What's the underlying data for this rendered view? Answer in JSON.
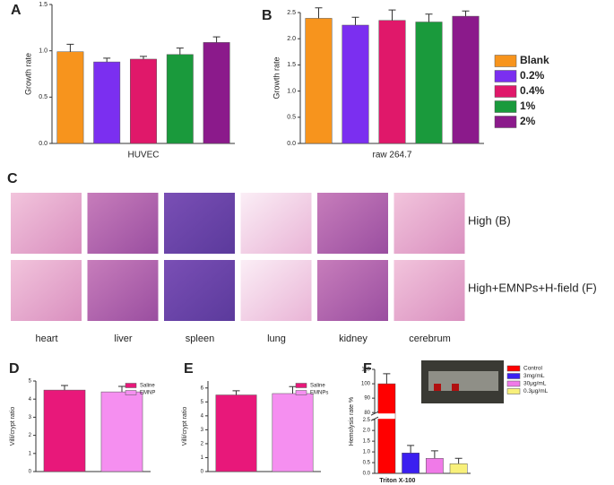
{
  "chart_data": [
    {
      "type": "bar",
      "panel": "A",
      "y_label": "Growth rate",
      "categories": [
        "HUVEC"
      ],
      "legend": "right",
      "ylim": [
        0,
        1.5
      ],
      "yticks": [
        {
          "value": 0,
          "label": "0.0"
        },
        0.5,
        {
          "value": 1,
          "label": "1.0"
        },
        1.5
      ],
      "series": [
        {
          "name": "Blank",
          "color": "#f7941d",
          "values": [
            0.99
          ],
          "errors": [
            0.08
          ]
        },
        {
          "name": "0.2%",
          "color": "#7b2ff0",
          "values": [
            0.88
          ],
          "errors": [
            0.04
          ]
        },
        {
          "name": "0.4%",
          "color": "#e0186a",
          "values": [
            0.91
          ],
          "errors": [
            0.03
          ]
        },
        {
          "name": "1%",
          "color": "#1a9a3c",
          "values": [
            0.96
          ],
          "errors": [
            0.07
          ]
        },
        {
          "name": "2%",
          "color": "#8b1a8b",
          "values": [
            1.09
          ],
          "errors": [
            0.06
          ]
        }
      ]
    },
    {
      "type": "bar",
      "panel": "B",
      "y_label": "Growth rate",
      "categories": [
        "raw 264.7"
      ],
      "ylim": [
        0,
        2.5
      ],
      "yticks": [
        {
          "value": 0,
          "label": "0.0"
        },
        0.5,
        {
          "value": 1,
          "label": "1.0"
        },
        1.5,
        {
          "value": 2,
          "label": "2.0"
        },
        2.5
      ],
      "series": [
        {
          "color": "#f7941d",
          "values": [
            2.39
          ],
          "errors": [
            0.2
          ]
        },
        {
          "color": "#7b2ff0",
          "values": [
            2.26
          ],
          "errors": [
            0.15
          ]
        },
        {
          "color": "#e0186a",
          "values": [
            2.35
          ],
          "errors": [
            0.2
          ]
        },
        {
          "color": "#1a9a3c",
          "values": [
            2.32
          ],
          "errors": [
            0.15
          ]
        },
        {
          "color": "#8b1a8b",
          "values": [
            2.43
          ],
          "errors": [
            0.1
          ]
        }
      ]
    },
    {
      "type": "bar",
      "panel": "D",
      "y_label": "Villi/crypt ratio",
      "legend": "upper right",
      "ylim": [
        0,
        5
      ],
      "yticks": [
        0,
        1,
        2,
        3,
        4,
        5
      ],
      "series": [
        {
          "name": "Saline",
          "color": "#e8187a",
          "values": [
            4.5
          ],
          "errors": [
            0.25
          ]
        },
        {
          "name": "EMNP",
          "color": "#f58ff0",
          "values": [
            4.4
          ],
          "errors": [
            0.3
          ]
        }
      ]
    },
    {
      "type": "bar",
      "panel": "E",
      "y_label": "Villi/crypt ratio",
      "legend": "upper right",
      "ylim": [
        0,
        6.5
      ],
      "yticks": [
        0,
        1,
        2,
        3,
        4,
        5,
        6
      ],
      "series": [
        {
          "name": "Saline",
          "color": "#e8187a",
          "values": [
            5.5
          ],
          "errors": [
            0.3
          ]
        },
        {
          "name": "EMNPs",
          "color": "#f58ff0",
          "values": [
            5.6
          ],
          "errors": [
            0.5
          ]
        }
      ]
    },
    {
      "type": "bar",
      "panel": "F",
      "y_label": "Hemolysis rate %",
      "categories": [
        "Triton X-100"
      ],
      "legend": "upper right",
      "ylim": [
        0,
        110
      ],
      "ybreak": [
        2.5,
        80
      ],
      "yticks": [
        {
          "value": 0,
          "label": "0.0"
        },
        0.5,
        {
          "value": 1,
          "label": "1.0"
        },
        1.5,
        {
          "value": 2,
          "label": "2.0"
        },
        2.5,
        80,
        90,
        100,
        110
      ],
      "series": [
        {
          "name": "Control",
          "color": "#ff0000",
          "values": [
            100
          ],
          "errors": [
            7
          ]
        },
        {
          "name": "3mg/mL",
          "color": "#3b1ff0",
          "values": [
            0.95
          ],
          "errors": [
            0.35
          ]
        },
        {
          "name": "30μg/mL",
          "color": "#f07ae8",
          "values": [
            0.7
          ],
          "errors": [
            0.35
          ]
        },
        {
          "name": "0.3μg/mL",
          "color": "#f8f07a",
          "values": [
            0.45
          ],
          "errors": [
            0.25
          ]
        }
      ]
    }
  ],
  "histology": {
    "panel": "C",
    "rows": [
      "High (B)",
      "High+EMNPs+H-field (F)"
    ],
    "columns": [
      "heart",
      "liver",
      "spleen",
      "lung",
      "kidney",
      "cerebrum"
    ]
  }
}
